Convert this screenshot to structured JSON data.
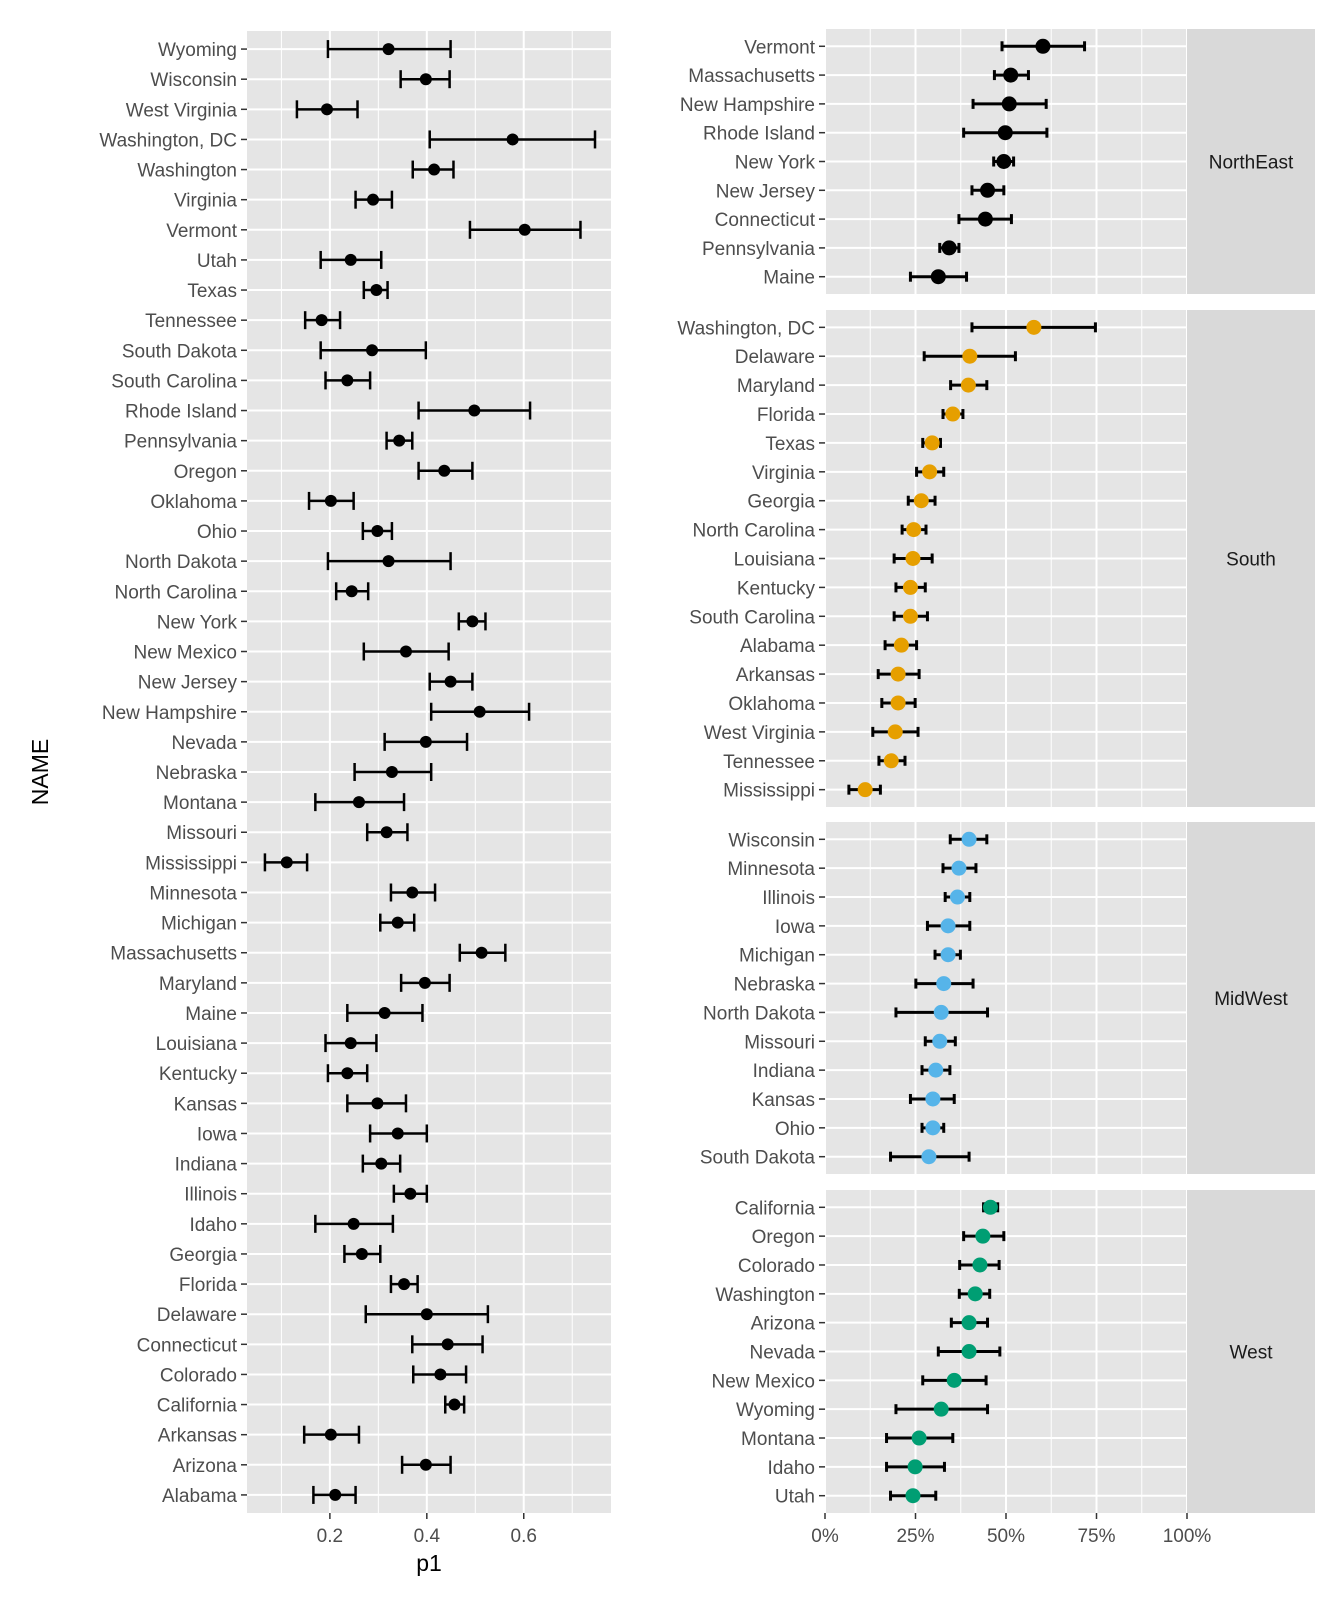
{
  "chart_data": [
    {
      "type": "dot-errorbar",
      "xlabel": "p1",
      "ylabel": "NAME",
      "xlim": [
        0.029,
        0.78
      ],
      "xticks": [
        "0.2",
        "0.4",
        "0.6"
      ],
      "xtick_values": [
        0.2,
        0.4,
        0.6
      ],
      "grid": true,
      "point_color": "#000000",
      "states": [
        {
          "name": "Wyoming",
          "region": "West",
          "p1": 0.321,
          "lo": 0.196,
          "hi": 0.449
        },
        {
          "name": "Wisconsin",
          "region": "MidWest",
          "p1": 0.398,
          "lo": 0.346,
          "hi": 0.447
        },
        {
          "name": "West Virginia",
          "region": "South",
          "p1": 0.194,
          "lo": 0.132,
          "hi": 0.257
        },
        {
          "name": "Washington, DC",
          "region": "South",
          "p1": 0.577,
          "lo": 0.406,
          "hi": 0.747
        },
        {
          "name": "Washington",
          "region": "West",
          "p1": 0.415,
          "lo": 0.371,
          "hi": 0.455
        },
        {
          "name": "Virginia",
          "region": "South",
          "p1": 0.289,
          "lo": 0.253,
          "hi": 0.328
        },
        {
          "name": "Vermont",
          "region": "NorthEast",
          "p1": 0.602,
          "lo": 0.489,
          "hi": 0.717
        },
        {
          "name": "Utah",
          "region": "West",
          "p1": 0.243,
          "lo": 0.181,
          "hi": 0.306
        },
        {
          "name": "Texas",
          "region": "South",
          "p1": 0.296,
          "lo": 0.27,
          "hi": 0.319
        },
        {
          "name": "Tennessee",
          "region": "South",
          "p1": 0.183,
          "lo": 0.149,
          "hi": 0.221
        },
        {
          "name": "South Dakota",
          "region": "MidWest",
          "p1": 0.287,
          "lo": 0.181,
          "hi": 0.398
        },
        {
          "name": "South Carolina",
          "region": "South",
          "p1": 0.236,
          "lo": 0.191,
          "hi": 0.283
        },
        {
          "name": "Rhode Island",
          "region": "NorthEast",
          "p1": 0.498,
          "lo": 0.383,
          "hi": 0.613
        },
        {
          "name": "Pennsylvania",
          "region": "NorthEast",
          "p1": 0.343,
          "lo": 0.317,
          "hi": 0.37
        },
        {
          "name": "Oregon",
          "region": "West",
          "p1": 0.436,
          "lo": 0.383,
          "hi": 0.494
        },
        {
          "name": "Oklahoma",
          "region": "South",
          "p1": 0.202,
          "lo": 0.157,
          "hi": 0.249
        },
        {
          "name": "Ohio",
          "region": "MidWest",
          "p1": 0.298,
          "lo": 0.268,
          "hi": 0.328
        },
        {
          "name": "North Dakota",
          "region": "MidWest",
          "p1": 0.321,
          "lo": 0.196,
          "hi": 0.449
        },
        {
          "name": "North Carolina",
          "region": "South",
          "p1": 0.245,
          "lo": 0.213,
          "hi": 0.279
        },
        {
          "name": "New York",
          "region": "NorthEast",
          "p1": 0.494,
          "lo": 0.466,
          "hi": 0.521
        },
        {
          "name": "New Mexico",
          "region": "West",
          "p1": 0.357,
          "lo": 0.27,
          "hi": 0.445
        },
        {
          "name": "New Jersey",
          "region": "NorthEast",
          "p1": 0.449,
          "lo": 0.406,
          "hi": 0.494
        },
        {
          "name": "New Hampshire",
          "region": "NorthEast",
          "p1": 0.509,
          "lo": 0.409,
          "hi": 0.611
        },
        {
          "name": "Nevada",
          "region": "West",
          "p1": 0.398,
          "lo": 0.313,
          "hi": 0.483
        },
        {
          "name": "Nebraska",
          "region": "MidWest",
          "p1": 0.328,
          "lo": 0.251,
          "hi": 0.409
        },
        {
          "name": "Montana",
          "region": "West",
          "p1": 0.26,
          "lo": 0.17,
          "hi": 0.353
        },
        {
          "name": "Missouri",
          "region": "MidWest",
          "p1": 0.317,
          "lo": 0.277,
          "hi": 0.36
        },
        {
          "name": "Mississippi",
          "region": "South",
          "p1": 0.111,
          "lo": 0.066,
          "hi": 0.153
        },
        {
          "name": "Minnesota",
          "region": "MidWest",
          "p1": 0.37,
          "lo": 0.326,
          "hi": 0.417
        },
        {
          "name": "Michigan",
          "region": "MidWest",
          "p1": 0.34,
          "lo": 0.304,
          "hi": 0.374
        },
        {
          "name": "Massachusetts",
          "region": "NorthEast",
          "p1": 0.513,
          "lo": 0.468,
          "hi": 0.562
        },
        {
          "name": "Maryland",
          "region": "South",
          "p1": 0.396,
          "lo": 0.347,
          "hi": 0.447
        },
        {
          "name": "Maine",
          "region": "NorthEast",
          "p1": 0.313,
          "lo": 0.236,
          "hi": 0.391
        },
        {
          "name": "Louisiana",
          "region": "South",
          "p1": 0.243,
          "lo": 0.191,
          "hi": 0.296
        },
        {
          "name": "Kentucky",
          "region": "South",
          "p1": 0.236,
          "lo": 0.196,
          "hi": 0.277
        },
        {
          "name": "Kansas",
          "region": "MidWest",
          "p1": 0.298,
          "lo": 0.236,
          "hi": 0.357
        },
        {
          "name": "Iowa",
          "region": "MidWest",
          "p1": 0.34,
          "lo": 0.283,
          "hi": 0.4
        },
        {
          "name": "Indiana",
          "region": "MidWest",
          "p1": 0.306,
          "lo": 0.268,
          "hi": 0.345
        },
        {
          "name": "Illinois",
          "region": "MidWest",
          "p1": 0.366,
          "lo": 0.332,
          "hi": 0.4
        },
        {
          "name": "Idaho",
          "region": "West",
          "p1": 0.249,
          "lo": 0.17,
          "hi": 0.33
        },
        {
          "name": "Georgia",
          "region": "South",
          "p1": 0.266,
          "lo": 0.23,
          "hi": 0.304
        },
        {
          "name": "Florida",
          "region": "South",
          "p1": 0.353,
          "lo": 0.326,
          "hi": 0.381
        },
        {
          "name": "Delaware",
          "region": "South",
          "p1": 0.4,
          "lo": 0.274,
          "hi": 0.526
        },
        {
          "name": "Connecticut",
          "region": "NorthEast",
          "p1": 0.443,
          "lo": 0.37,
          "hi": 0.515
        },
        {
          "name": "Colorado",
          "region": "West",
          "p1": 0.428,
          "lo": 0.372,
          "hi": 0.481
        },
        {
          "name": "California",
          "region": "West",
          "p1": 0.457,
          "lo": 0.438,
          "hi": 0.477
        },
        {
          "name": "Arkansas",
          "region": "South",
          "p1": 0.202,
          "lo": 0.147,
          "hi": 0.26
        },
        {
          "name": "Arizona",
          "region": "West",
          "p1": 0.398,
          "lo": 0.349,
          "hi": 0.449
        },
        {
          "name": "Alabama",
          "region": "South",
          "p1": 0.211,
          "lo": 0.166,
          "hi": 0.253
        }
      ]
    },
    {
      "type": "faceted-dot-errorbar",
      "xlim": [
        0,
        1
      ],
      "xticks": [
        "0%",
        "25%",
        "50%",
        "75%",
        "100%"
      ],
      "xtick_values": [
        0,
        0.25,
        0.5,
        0.75,
        1
      ],
      "grid": true,
      "facets": [
        {
          "label": "NorthEast",
          "color": "#000000",
          "states": [
            "Vermont",
            "Massachusetts",
            "New Hampshire",
            "Rhode Island",
            "New York",
            "New Jersey",
            "Connecticut",
            "Pennsylvania",
            "Maine"
          ]
        },
        {
          "label": "South",
          "color": "#E69F00",
          "states": [
            "Washington, DC",
            "Delaware",
            "Maryland",
            "Florida",
            "Texas",
            "Virginia",
            "Georgia",
            "North Carolina",
            "Louisiana",
            "Kentucky",
            "South Carolina",
            "Alabama",
            "Arkansas",
            "Oklahoma",
            "West Virginia",
            "Tennessee",
            "Mississippi"
          ]
        },
        {
          "label": "MidWest",
          "color": "#56B4E9",
          "states": [
            "Wisconsin",
            "Minnesota",
            "Illinois",
            "Iowa",
            "Michigan",
            "Nebraska",
            "North Dakota",
            "Missouri",
            "Indiana",
            "Kansas",
            "Ohio",
            "South Dakota"
          ]
        },
        {
          "label": "West",
          "color": "#009E73",
          "states": [
            "California",
            "Oregon",
            "Colorado",
            "Washington",
            "Arizona",
            "Nevada",
            "New Mexico",
            "Wyoming",
            "Montana",
            "Idaho",
            "Utah"
          ]
        }
      ]
    }
  ]
}
